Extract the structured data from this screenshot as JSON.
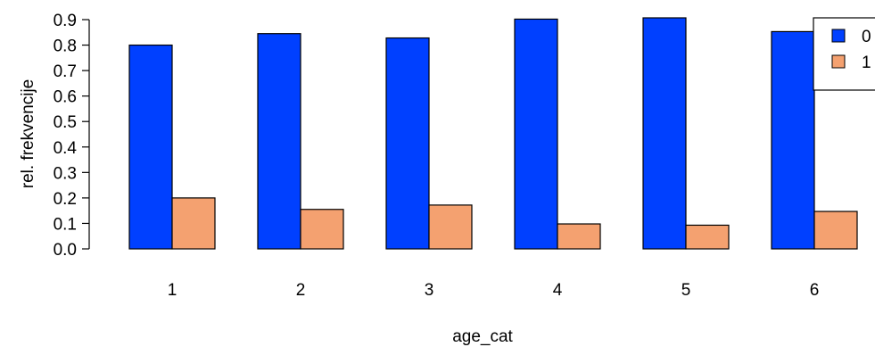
{
  "chart_data": {
    "type": "bar",
    "categories": [
      "1",
      "2",
      "3",
      "4",
      "5",
      "6"
    ],
    "series": [
      {
        "name": "0",
        "color": "#0040FF",
        "values": [
          0.8,
          0.845,
          0.828,
          0.902,
          0.907,
          0.853
        ]
      },
      {
        "name": "1",
        "color": "#F4A170",
        "values": [
          0.2,
          0.155,
          0.172,
          0.098,
          0.093,
          0.147
        ]
      }
    ],
    "xlabel": "age_cat",
    "ylabel": "rel. frekvencije",
    "ylim": [
      0,
      0.9
    ],
    "yticks": [
      "0.0",
      "0.1",
      "0.2",
      "0.3",
      "0.4",
      "0.5",
      "0.6",
      "0.7",
      "0.8",
      "0.9"
    ],
    "grid": false,
    "legend": {
      "position": "top-right",
      "entries": [
        "0",
        "1"
      ]
    }
  }
}
